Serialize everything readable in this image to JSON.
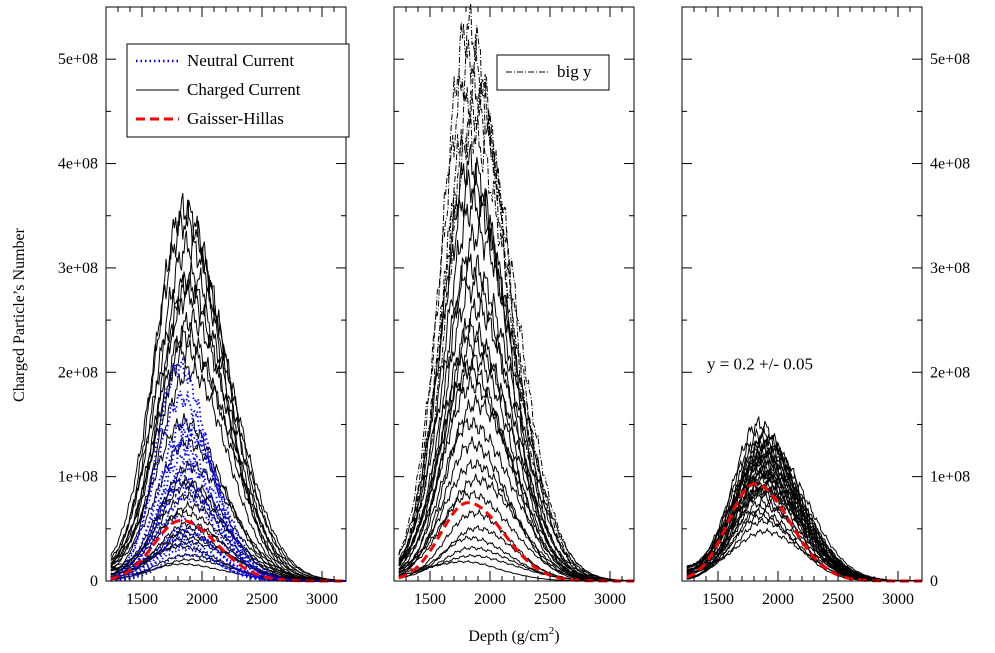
{
  "figure": {
    "xlabel": "Depth (g/cm",
    "xlabel_sup": "2",
    "xlabel_end": ")",
    "ylabel": "Charged Particle’s Number"
  },
  "chart_data": [
    {
      "type": "line",
      "panel": "left",
      "xlim": [
        1200,
        3200
      ],
      "ylim": [
        0,
        550000000
      ],
      "x_ticks": [
        1500,
        2000,
        2500,
        3000
      ],
      "x_tick_labels": [
        "1500",
        "2000",
        "2500",
        "3000"
      ],
      "y_ticks": [
        0,
        100000000,
        200000000,
        300000000,
        400000000,
        500000000
      ],
      "y_tick_labels": [
        "0",
        "1e+08",
        "2e+08",
        "3e+08",
        "4e+08",
        "5e+08"
      ],
      "y_axis_side": "left",
      "legend": {
        "placement": "top-left",
        "entries": [
          {
            "label": "Neutral Current",
            "style": "dotted",
            "color": "#0000ff"
          },
          {
            "label": "Charged Current",
            "style": "solid",
            "color": "#000000"
          },
          {
            "label": "Gaisser-Hillas",
            "style": "dashed",
            "color": "#ff0000"
          }
        ]
      },
      "series": [
        {
          "name": "Charged Current",
          "color": "#000000",
          "style": "solid",
          "peak_depth": 1880,
          "width": 250,
          "peaks": [
            355000000,
            345000000,
            320000000,
            290000000,
            282000000,
            272000000,
            250000000,
            235000000,
            220000000,
            200000000,
            150000000,
            130000000,
            110000000,
            95000000,
            90000000,
            80000000,
            70000000,
            62000000,
            55000000,
            50000000,
            45000000,
            40000000,
            35000000,
            30000000,
            25000000,
            20000000,
            15000000
          ]
        },
        {
          "name": "Neutral Current",
          "color": "#0000ff",
          "style": "dotted",
          "peak_depth": 1840,
          "width": 200,
          "peaks": [
            205000000,
            175000000,
            150000000,
            140000000,
            130000000,
            120000000,
            110000000,
            100000000,
            90000000,
            80000000,
            60000000,
            50000000,
            45000000,
            40000000,
            35000000,
            30000000,
            25000000
          ]
        },
        {
          "name": "Gaisser-Hillas",
          "color": "#ff0000",
          "style": "dashed",
          "peak_depth": 1860,
          "width": 240,
          "peaks": [
            58000000
          ]
        }
      ]
    },
    {
      "type": "line",
      "panel": "middle",
      "xlim": [
        1200,
        3200
      ],
      "ylim": [
        0,
        550000000
      ],
      "x_ticks": [
        1500,
        2000,
        2500,
        3000
      ],
      "x_tick_labels": [
        "1500",
        "2000",
        "2500",
        "3000"
      ],
      "y_ticks": [
        0,
        100000000,
        200000000,
        300000000,
        400000000,
        500000000
      ],
      "y_tick_labels": [],
      "legend": {
        "placement": "top-right",
        "entries": [
          {
            "label": "big y",
            "style": "dash-dot",
            "color": "#000000"
          }
        ]
      },
      "series": [
        {
          "name": "big y",
          "color": "#000000",
          "style": "dash-dot",
          "peak_depth": 1850,
          "width": 230,
          "peaks": [
            530000000,
            500000000,
            470000000,
            450000000,
            430000000
          ]
        },
        {
          "color": "#000000",
          "style": "solid",
          "peak_depth": 1860,
          "width": 240,
          "peaks": [
            400000000,
            380000000,
            360000000,
            330000000,
            300000000,
            280000000,
            260000000,
            240000000,
            225000000,
            210000000,
            200000000,
            185000000,
            170000000,
            150000000,
            130000000,
            110000000,
            95000000,
            80000000,
            65000000,
            50000000,
            40000000,
            30000000,
            22000000,
            15000000
          ]
        },
        {
          "name": "Gaisser-Hillas",
          "color": "#ff0000",
          "style": "dashed",
          "peak_depth": 1850,
          "width": 240,
          "peaks": [
            75000000
          ]
        }
      ]
    },
    {
      "type": "line",
      "panel": "right",
      "xlim": [
        1200,
        3200
      ],
      "ylim": [
        0,
        550000000
      ],
      "x_ticks": [
        1500,
        2000,
        2500,
        3000
      ],
      "x_tick_labels": [
        "1500",
        "2000",
        "2500",
        "3000"
      ],
      "y_ticks": [
        0,
        100000000,
        200000000,
        300000000,
        400000000,
        500000000
      ],
      "y_tick_labels": [
        "0",
        "1e+08",
        "2e+08",
        "3e+08",
        "4e+08",
        "5e+08"
      ],
      "y_axis_side": "right",
      "annotation": {
        "text": "y = 0.2 +/- 0.05",
        "x": 1850,
        "y": 200000000
      },
      "series": [
        {
          "color": "#000000",
          "style": "solid",
          "peak_depth": 1870,
          "width": 230,
          "peaks": [
            150000000,
            140000000,
            135000000,
            130000000,
            128000000,
            125000000,
            122000000,
            120000000,
            118000000,
            115000000,
            112000000,
            110000000,
            108000000,
            105000000,
            102000000,
            100000000,
            98000000,
            95000000,
            92000000,
            90000000,
            88000000,
            85000000,
            82000000,
            80000000,
            75000000,
            70000000,
            65000000,
            60000000,
            55000000,
            45000000
          ]
        },
        {
          "name": "Gaisser-Hillas",
          "color": "#ff0000",
          "style": "dashed",
          "peak_depth": 1840,
          "width": 235,
          "peaks": [
            93000000
          ]
        }
      ]
    }
  ]
}
